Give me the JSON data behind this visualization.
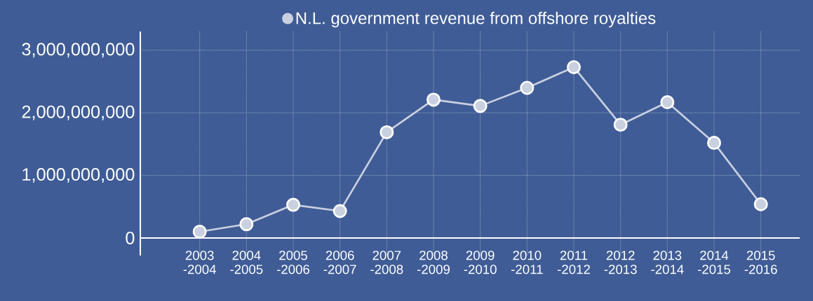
{
  "chart_data": {
    "type": "line",
    "categories": [
      "2003 -2004",
      "2004 -2005",
      "2005 -2006",
      "2006 -2007",
      "2007 -2008",
      "2008 -2009",
      "2009 -2010",
      "2010 -2011",
      "2011 -2012",
      "2012 -2013",
      "2013 -2014",
      "2014 -2015",
      "2015 -2016"
    ],
    "series": [
      {
        "name": "N.L. government revenue from offshore royalties",
        "color": "#c9d0e0",
        "values": [
          100000000,
          220000000,
          530000000,
          430000000,
          1690000000,
          2210000000,
          2110000000,
          2400000000,
          2730000000,
          1810000000,
          2170000000,
          1520000000,
          540000000
        ]
      }
    ],
    "ylim": [
      -280000000,
      3300000000
    ],
    "yticks": [
      0,
      {
        "value": 1000000000,
        "label": "1,000,000,000"
      },
      {
        "value": 2000000000,
        "label": "2,000,000,000"
      },
      {
        "value": 3000000000,
        "label": "3,000,000,000"
      }
    ],
    "grid": true,
    "legend": "top",
    "marker": "circle",
    "line_style": "solid"
  }
}
